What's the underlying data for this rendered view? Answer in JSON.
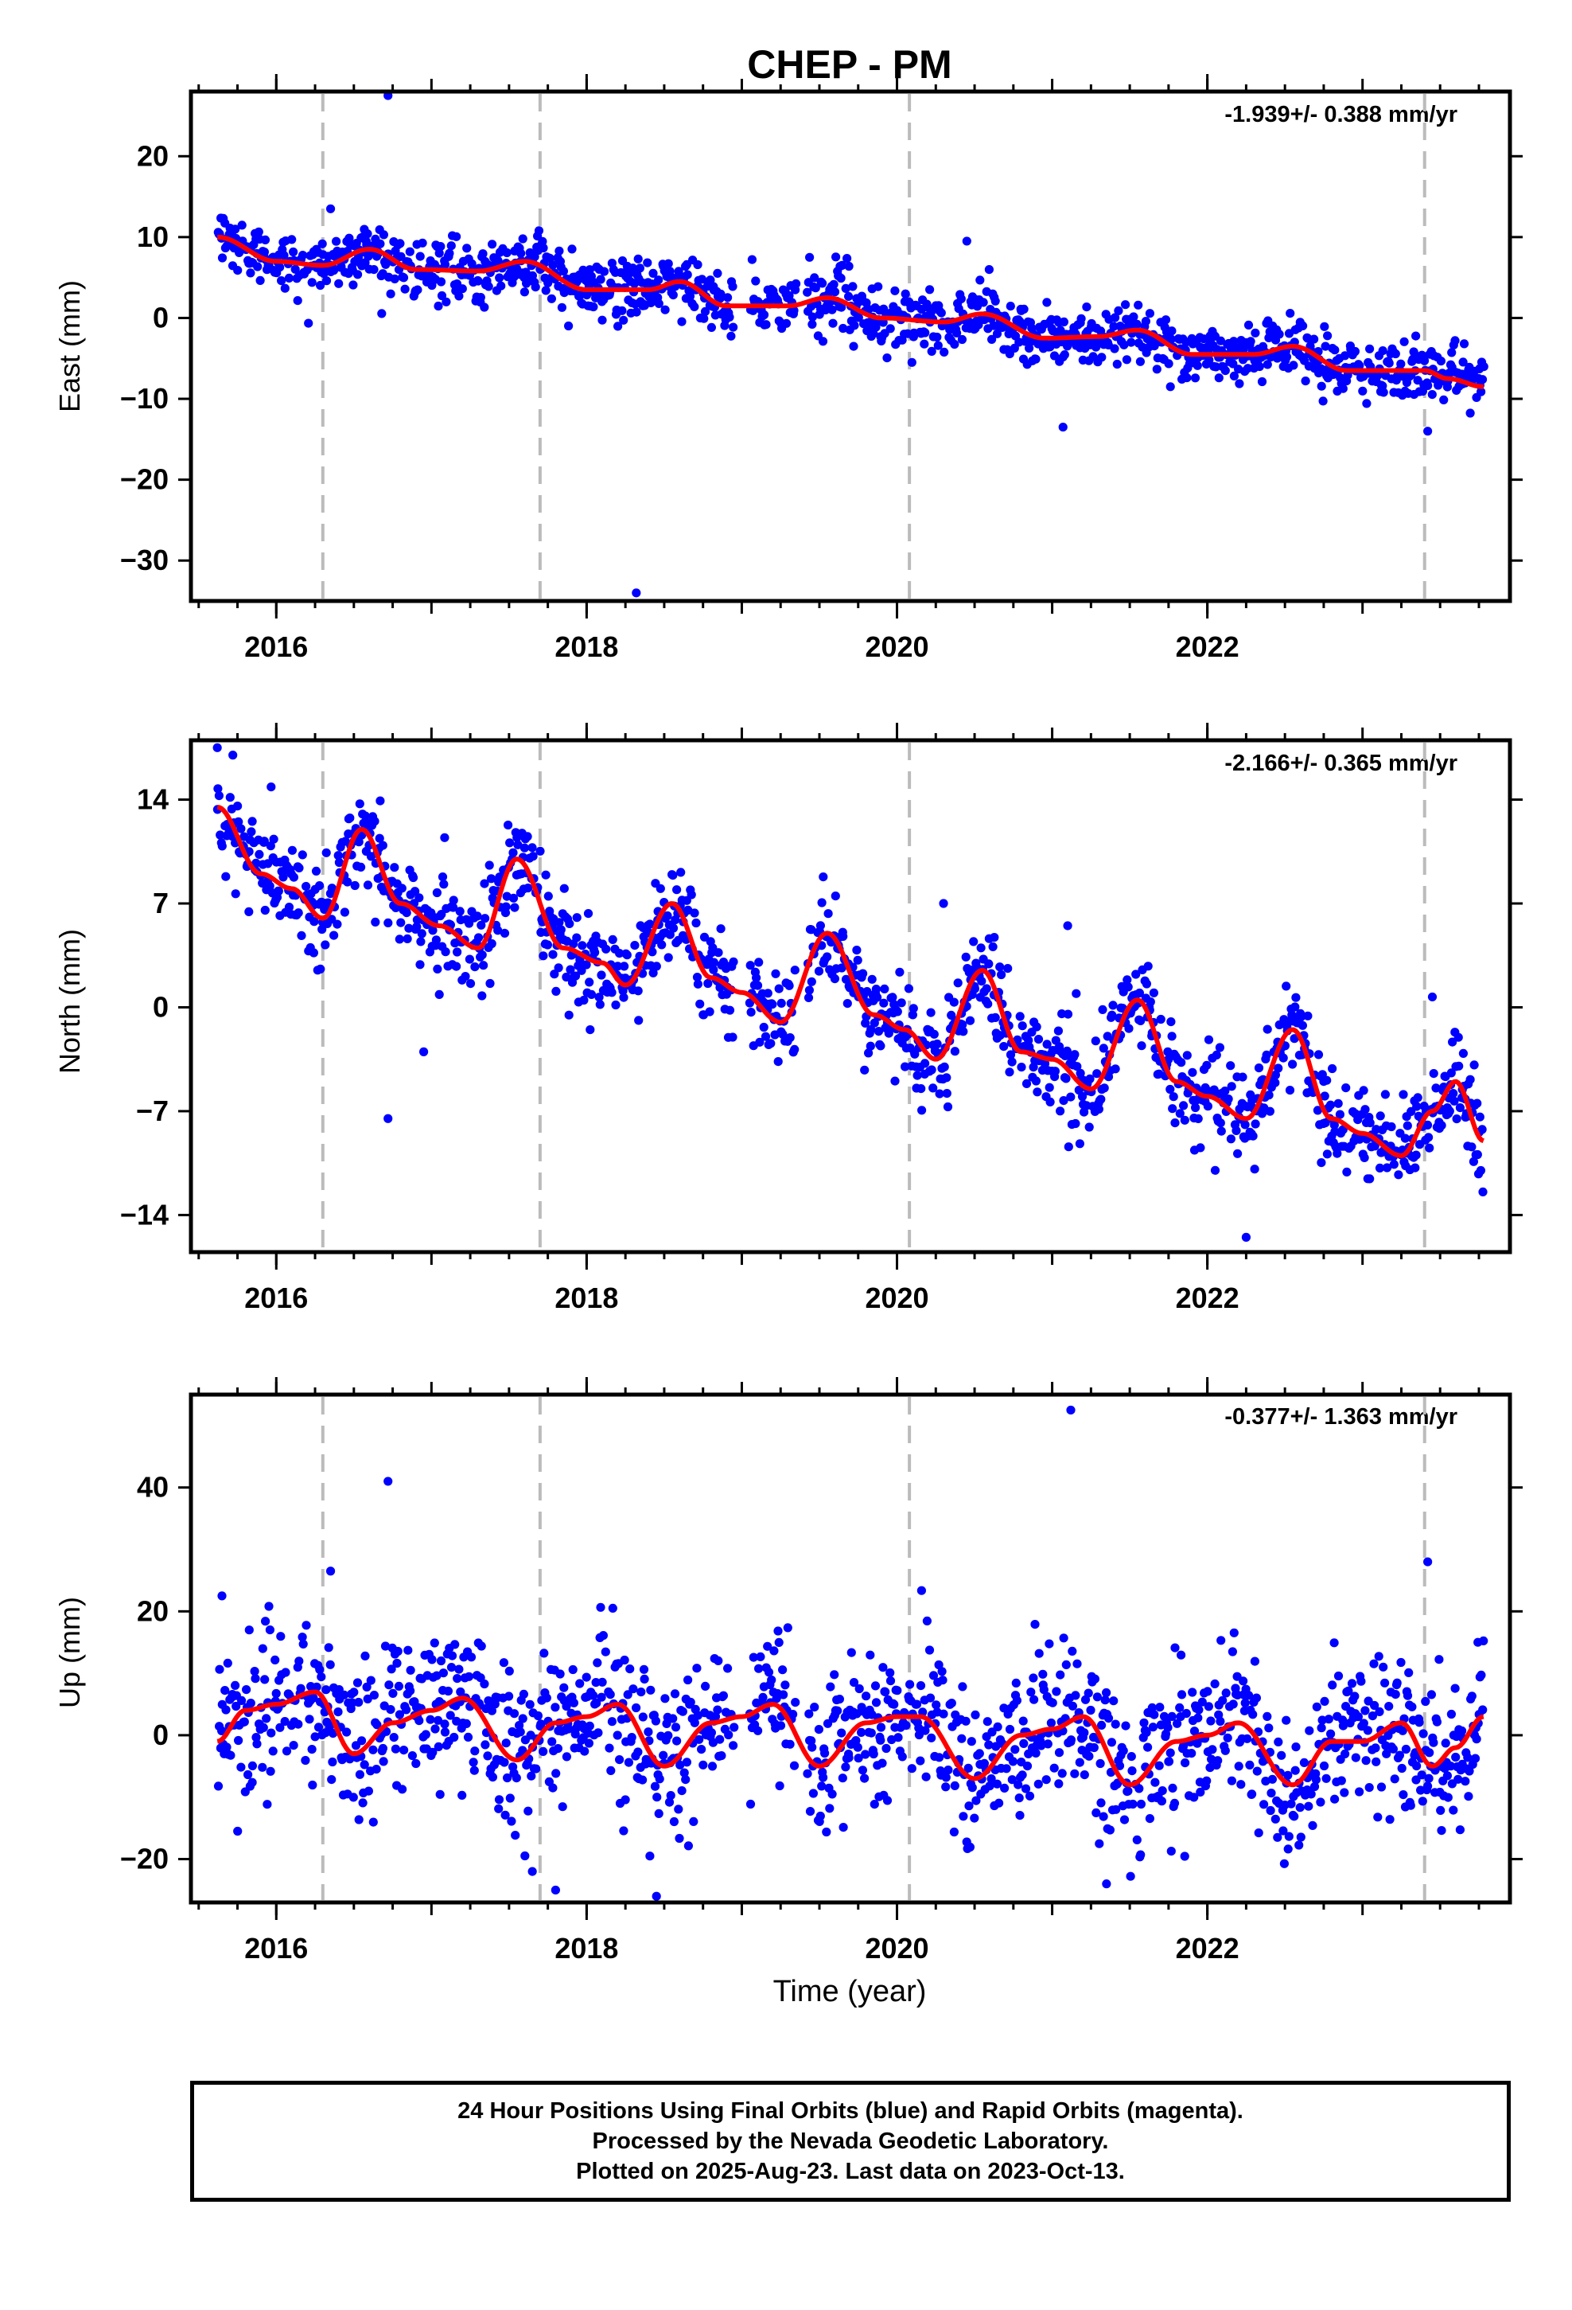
{
  "chart_data": {
    "type": "scatter",
    "title": "CHEP - PM",
    "xlabel": "Time (year)",
    "x_ticks": [
      "2016",
      "2018",
      "2020",
      "2022"
    ],
    "x_range": [
      2015.45,
      2023.95
    ],
    "data_span": [
      2015.62,
      2023.78
    ],
    "event_lines": [
      2016.3,
      2017.7,
      2020.08,
      2023.4
    ],
    "colors": {
      "points": "#0000ff",
      "model": "#ff0000",
      "event_lines": "#bbbbbb"
    },
    "grid": false,
    "panels": [
      {
        "ylabel": "East (mm)",
        "rate_label": "-1.939+/- 0.388 mm/yr",
        "ylim": [
          -35,
          28
        ],
        "yticks": [
          20,
          10,
          0,
          -10,
          -20,
          -30
        ],
        "scatter_sd": 1.8,
        "model_curve": [
          [
            2015.62,
            10
          ],
          [
            2016.0,
            7
          ],
          [
            2016.3,
            6.5
          ],
          [
            2016.6,
            8.5
          ],
          [
            2016.9,
            6
          ],
          [
            2017.3,
            5.8
          ],
          [
            2017.6,
            7
          ],
          [
            2018.0,
            3.5
          ],
          [
            2018.4,
            3.5
          ],
          [
            2018.6,
            4.5
          ],
          [
            2018.9,
            1.5
          ],
          [
            2019.3,
            1.5
          ],
          [
            2019.55,
            2.5
          ],
          [
            2019.9,
            0
          ],
          [
            2020.3,
            -0.5
          ],
          [
            2020.55,
            0.5
          ],
          [
            2020.95,
            -2.5
          ],
          [
            2021.3,
            -2.3
          ],
          [
            2021.55,
            -1.5
          ],
          [
            2021.9,
            -4.5
          ],
          [
            2022.3,
            -4.5
          ],
          [
            2022.55,
            -3.5
          ],
          [
            2022.9,
            -6.5
          ],
          [
            2023.4,
            -6.5
          ],
          [
            2023.55,
            -7.5
          ],
          [
            2023.78,
            -8.5
          ]
        ],
        "outliers": [
          [
            2016.72,
            27.5
          ],
          [
            2018.32,
            -34
          ],
          [
            2021.07,
            -13.5
          ],
          [
            2020.45,
            9.5
          ],
          [
            2016.35,
            13.5
          ],
          [
            2023.42,
            -14
          ]
        ]
      },
      {
        "ylabel": "North (mm)",
        "rate_label": "-2.166+/- 0.365 mm/yr",
        "ylim": [
          -16.5,
          18
        ],
        "yticks": [
          14,
          7,
          0,
          -7,
          -14
        ],
        "scatter_sd": 1.6,
        "model_curve": [
          [
            2015.62,
            13.5
          ],
          [
            2015.9,
            9
          ],
          [
            2016.1,
            8
          ],
          [
            2016.3,
            6
          ],
          [
            2016.55,
            12
          ],
          [
            2016.8,
            7
          ],
          [
            2017.05,
            5.5
          ],
          [
            2017.3,
            4
          ],
          [
            2017.55,
            10
          ],
          [
            2017.85,
            4
          ],
          [
            2018.1,
            3
          ],
          [
            2018.25,
            1.5
          ],
          [
            2018.55,
            7
          ],
          [
            2018.8,
            2
          ],
          [
            2019.0,
            1
          ],
          [
            2019.25,
            -1
          ],
          [
            2019.55,
            5
          ],
          [
            2019.85,
            -0.5
          ],
          [
            2020.05,
            -1.5
          ],
          [
            2020.25,
            -3.5
          ],
          [
            2020.55,
            2.5
          ],
          [
            2020.8,
            -3
          ],
          [
            2021.0,
            -3.5
          ],
          [
            2021.25,
            -5.5
          ],
          [
            2021.55,
            0.5
          ],
          [
            2021.8,
            -5
          ],
          [
            2022.0,
            -6
          ],
          [
            2022.25,
            -7.5
          ],
          [
            2022.55,
            -1.5
          ],
          [
            2022.8,
            -7.5
          ],
          [
            2023.0,
            -8.5
          ],
          [
            2023.25,
            -10
          ],
          [
            2023.45,
            -7
          ],
          [
            2023.6,
            -5
          ],
          [
            2023.78,
            -9
          ]
        ],
        "outliers": [
          [
            2015.62,
            17.5
          ],
          [
            2015.72,
            17
          ],
          [
            2016.72,
            -7.5
          ],
          [
            2016.95,
            -3
          ],
          [
            2022.25,
            -15.5
          ],
          [
            2023.45,
            0.7
          ],
          [
            2021.1,
            5.5
          ],
          [
            2020.3,
            7
          ]
        ]
      },
      {
        "ylabel": "Up (mm)",
        "rate_label": "-0.377+/- 1.363 mm/yr",
        "ylim": [
          -27,
          55
        ],
        "yticks": [
          40,
          20,
          0,
          -20
        ],
        "scatter_sd": 6,
        "model_curve": [
          [
            2015.62,
            -1
          ],
          [
            2015.8,
            4
          ],
          [
            2016.0,
            5
          ],
          [
            2016.25,
            7
          ],
          [
            2016.5,
            -3
          ],
          [
            2016.75,
            2
          ],
          [
            2017.0,
            4
          ],
          [
            2017.2,
            6
          ],
          [
            2017.55,
            -4
          ],
          [
            2017.8,
            2
          ],
          [
            2018.0,
            3
          ],
          [
            2018.2,
            5
          ],
          [
            2018.5,
            -5
          ],
          [
            2018.8,
            2
          ],
          [
            2019.0,
            3
          ],
          [
            2019.2,
            5
          ],
          [
            2019.5,
            -5
          ],
          [
            2019.8,
            2
          ],
          [
            2020.0,
            3
          ],
          [
            2020.15,
            3
          ],
          [
            2020.5,
            -7
          ],
          [
            2020.8,
            0
          ],
          [
            2021.0,
            1
          ],
          [
            2021.2,
            3
          ],
          [
            2021.5,
            -8
          ],
          [
            2021.8,
            -1
          ],
          [
            2022.0,
            0
          ],
          [
            2022.2,
            2
          ],
          [
            2022.55,
            -8
          ],
          [
            2022.8,
            -1
          ],
          [
            2023.0,
            -1
          ],
          [
            2023.25,
            2
          ],
          [
            2023.45,
            -5
          ],
          [
            2023.6,
            -2
          ],
          [
            2023.78,
            3
          ]
        ],
        "outliers": [
          [
            2016.72,
            41
          ],
          [
            2021.12,
            52.5
          ],
          [
            2023.42,
            28
          ],
          [
            2017.65,
            -22
          ],
          [
            2017.8,
            -25
          ],
          [
            2018.45,
            -26
          ],
          [
            2021.35,
            -24
          ],
          [
            2015.65,
            22.5
          ],
          [
            2016.35,
            26.5
          ]
        ]
      }
    ]
  },
  "footer": {
    "line1": "24 Hour Positions Using Final Orbits (blue) and Rapid Orbits (magenta).",
    "line2": "Processed by the Nevada Geodetic Laboratory.",
    "line3": "Plotted on 2025-Aug-23. Last data on 2023-Oct-13."
  }
}
